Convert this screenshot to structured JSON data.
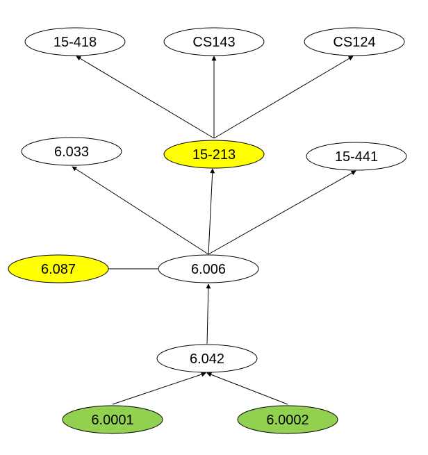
{
  "colors": {
    "default": "#ffffff",
    "yellow": "#ffff00",
    "green": "#92d050",
    "stroke": "#000000"
  },
  "nodes": [
    {
      "id": "n15_418",
      "label": "15-418",
      "fill": "default"
    },
    {
      "id": "ncs143",
      "label": "CS143",
      "fill": "default"
    },
    {
      "id": "ncs124",
      "label": "CS124",
      "fill": "default"
    },
    {
      "id": "n6_033",
      "label": "6.033",
      "fill": "default"
    },
    {
      "id": "n15_213",
      "label": "15-213",
      "fill": "yellow"
    },
    {
      "id": "n15_441",
      "label": "15-441",
      "fill": "default"
    },
    {
      "id": "n6_087",
      "label": "6.087",
      "fill": "yellow"
    },
    {
      "id": "n6_006",
      "label": "6.006",
      "fill": "default"
    },
    {
      "id": "n6_042",
      "label": "6.042",
      "fill": "default"
    },
    {
      "id": "n6_0001",
      "label": "6.0001",
      "fill": "green"
    },
    {
      "id": "n6_0002",
      "label": "6.0002",
      "fill": "green"
    }
  ],
  "edges": [
    {
      "from": "n15_213",
      "to": "n15_418",
      "arrow": true
    },
    {
      "from": "n15_213",
      "to": "ncs143",
      "arrow": true
    },
    {
      "from": "n15_213",
      "to": "ncs124",
      "arrow": true
    },
    {
      "from": "n6_006",
      "to": "n6_033",
      "arrow": true
    },
    {
      "from": "n6_006",
      "to": "n15_213",
      "arrow": true
    },
    {
      "from": "n6_006",
      "to": "n15_441",
      "arrow": true
    },
    {
      "from": "n6_087",
      "to": "n6_006",
      "arrow": false
    },
    {
      "from": "n6_042",
      "to": "n6_006",
      "arrow": true
    },
    {
      "from": "n6_0001",
      "to": "n6_042",
      "arrow": true
    },
    {
      "from": "n6_0002",
      "to": "n6_042",
      "arrow": true
    }
  ]
}
